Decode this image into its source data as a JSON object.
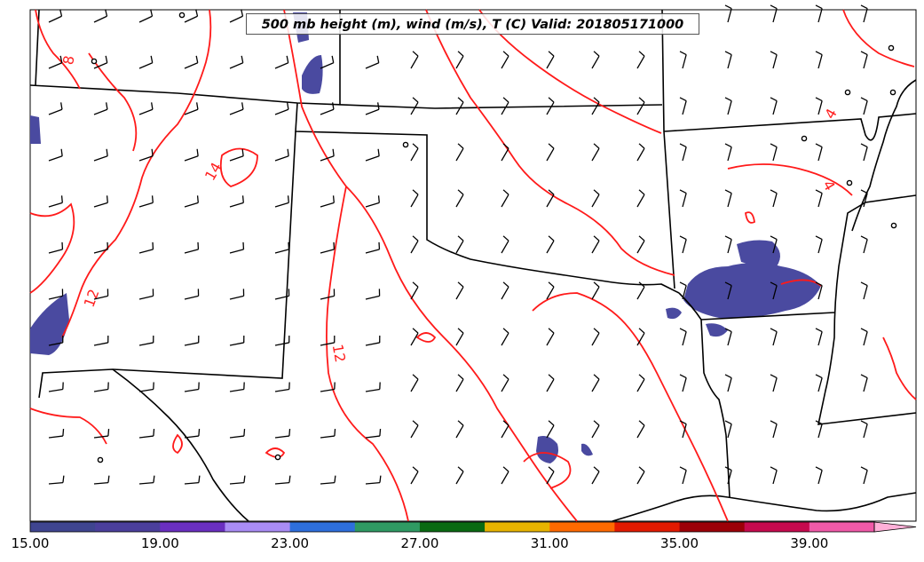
{
  "title": "500 mb height (m), wind (m/s), T (C) Valid: 201805171000",
  "contour_labels": [
    {
      "text": "8"
    },
    {
      "text": "14"
    },
    {
      "text": "12"
    },
    {
      "text": "12"
    },
    {
      "text": "4"
    },
    {
      "text": "4"
    }
  ],
  "colorbar": {
    "ticks": [
      "15.00",
      "19.00",
      "23.00",
      "27.00",
      "31.00",
      "35.00",
      "39.00"
    ],
    "colors": [
      "#3f4590",
      "#4b3f9c",
      "#6a2fc0",
      "#a98cf5",
      "#2e6fdc",
      "#2f9a63",
      "#0a6a12",
      "#e7b400",
      "#ff6a00",
      "#e21a00",
      "#9c0008",
      "#c60a4e",
      "#f05aa8",
      "#ffb0d8"
    ]
  },
  "colors": {
    "contour": "#ff1a1a",
    "border": "#000000",
    "shade": "#4a4aa0"
  }
}
